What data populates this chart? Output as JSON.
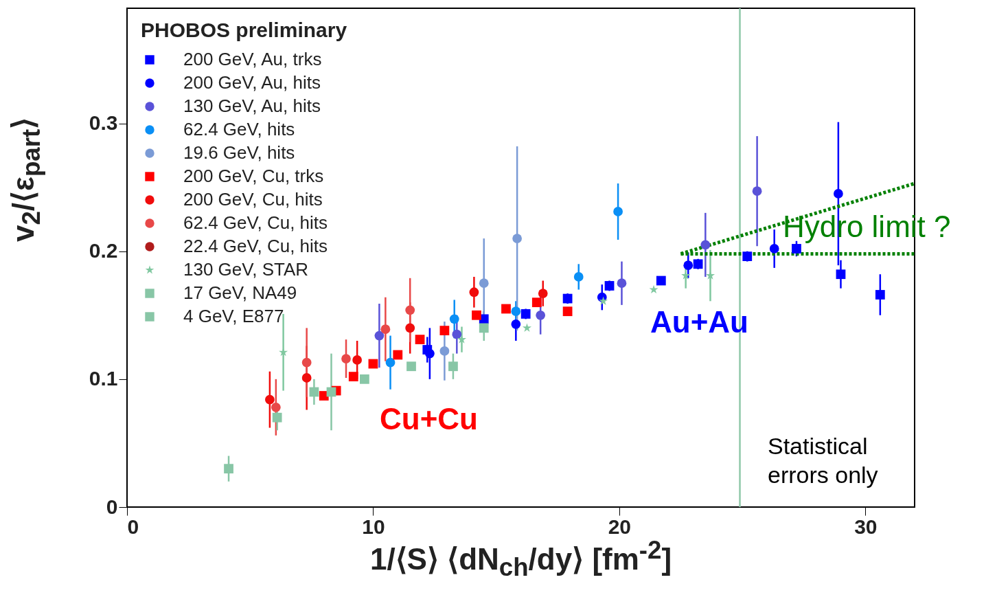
{
  "chart_data": {
    "type": "scatter",
    "xlabel": "1/⟨S⟩ ⟨dN$_{ch}$/dy⟩ [fm$^{-2}$]",
    "ylabel": "v$_{2}$/⟨ε$_{part}$⟩",
    "legend_title": "PHOBOS preliminary",
    "legend": "top left",
    "grid": false,
    "xlim": [
      0,
      32
    ],
    "ylim": [
      0,
      0.39
    ],
    "xticks": [
      0,
      10,
      20,
      30
    ],
    "yticks": [
      0,
      0.1,
      0.2,
      0.3
    ],
    "series": [
      {
        "name": "200 GeV, Au, trks",
        "color": "#0000ff",
        "marker": "square",
        "x": [
          12.2,
          14.5,
          16.2,
          17.9,
          19.6,
          21.7,
          23.2,
          25.2,
          27.2,
          29.0,
          30.6
        ],
        "values": [
          0.123,
          0.147,
          0.151,
          0.163,
          0.173,
          0.177,
          0.19,
          0.196,
          0.202,
          0.182,
          0.166
        ],
        "errors": [
          0.01,
          0.006,
          0.004,
          0.004,
          0.004,
          0.003,
          0.004,
          0.004,
          0.006,
          0.011,
          0.016
        ]
      },
      {
        "name": "200 GeV, Au, hits",
        "color": "#0000ff",
        "marker": "circle",
        "x": [
          12.3,
          15.8,
          19.3,
          22.8,
          26.3,
          28.9
        ],
        "values": [
          0.12,
          0.143,
          0.164,
          0.189,
          0.202,
          0.245
        ],
        "errors": [
          0.02,
          0.013,
          0.01,
          0.01,
          0.015,
          0.056
        ]
      },
      {
        "name": "130 GeV, Au, hits",
        "color": "#5a52d8",
        "marker": "circle",
        "x": [
          10.25,
          13.4,
          16.8,
          20.1,
          23.5,
          25.6
        ],
        "values": [
          0.134,
          0.135,
          0.15,
          0.175,
          0.205,
          0.247
        ],
        "errors": [
          0.025,
          0.015,
          0.015,
          0.017,
          0.025,
          0.043
        ]
      },
      {
        "name": "62.4 GeV, hits",
        "color": "#0a8ff5",
        "marker": "circle",
        "x": [
          10.7,
          13.3,
          15.8,
          18.35,
          19.95
        ],
        "values": [
          0.113,
          0.147,
          0.153,
          0.18,
          0.231
        ],
        "errors": [
          0.021,
          0.015,
          0.008,
          0.01,
          0.022
        ]
      },
      {
        "name": "19.6 GeV, hits",
        "color": "#7b9bd6",
        "marker": "circle",
        "x": [
          12.9,
          14.5,
          15.85
        ],
        "values": [
          0.122,
          0.175,
          0.21
        ],
        "errors": [
          0.023,
          0.035,
          0.072
        ]
      },
      {
        "name": "200 GeV, Cu, trks",
        "color": "#ff0000",
        "marker": "square",
        "x": [
          8.0,
          8.5,
          9.2,
          10.0,
          11.0,
          11.9,
          12.9,
          14.2,
          15.4,
          16.65,
          17.9
        ],
        "values": [
          0.087,
          0.091,
          0.102,
          0.112,
          0.119,
          0.131,
          0.138,
          0.15,
          0.155,
          0.16,
          0.153
        ]
      },
      {
        "name": "200 GeV, Cu, hits",
        "color": "#f00c0c",
        "marker": "circle",
        "x": [
          5.8,
          7.3,
          9.35,
          11.5,
          14.1,
          16.9
        ],
        "values": [
          0.084,
          0.101,
          0.115,
          0.14,
          0.168,
          0.167
        ],
        "errors": [
          0.022,
          0.025,
          0.015,
          0.02,
          0.012,
          0.01
        ]
      },
      {
        "name": "62.4 GeV, Cu, hits",
        "color": "#e84848",
        "marker": "circle",
        "x": [
          6.05,
          7.3,
          8.9,
          10.5,
          11.5
        ],
        "values": [
          0.078,
          0.113,
          0.116,
          0.139,
          0.154
        ],
        "errors": [
          0.022,
          0.027,
          0.015,
          0.025,
          0.025
        ]
      },
      {
        "name": "22.4 GeV, Cu, hits",
        "color": "#b01c1c",
        "marker": "circle"
      },
      {
        "name": "130 GeV, STAR",
        "color": "#80c8a0",
        "marker": "star",
        "x": [
          6.35,
          13.6,
          16.25,
          19.35,
          21.4,
          22.7,
          23.7
        ],
        "values": [
          0.121,
          0.131,
          0.14,
          0.161,
          0.17,
          0.181,
          0.181
        ],
        "errors": [
          0.03,
          0.01,
          null,
          null,
          null,
          0.01,
          0.02
        ]
      },
      {
        "name": "17 GeV, NA49",
        "color": "#88c6a6",
        "marker": "square",
        "x": [
          6.1,
          7.6,
          8.3,
          9.65,
          11.55,
          13.25,
          14.5
        ],
        "values": [
          0.07,
          0.09,
          0.09,
          0.1,
          0.11,
          0.11,
          0.14
        ],
        "errors": [
          0.01,
          0.01,
          0.03,
          null,
          null,
          0.01,
          0.01
        ]
      },
      {
        "name": "4 GeV, E877",
        "color": "#88c6a6",
        "marker": "square",
        "x": [
          4.13
        ],
        "values": [
          0.03
        ],
        "errors": [
          0.01
        ]
      },
      {
        "type": "line",
        "color": "#008000",
        "line_style": "dotted",
        "x": [
          22.5,
          32
        ],
        "values": [
          0.198,
          0.198
        ]
      },
      {
        "type": "line",
        "color": "#008000",
        "line_style": "dotted",
        "x": [
          22.5,
          32
        ],
        "values": [
          0.198,
          0.253
        ]
      }
    ],
    "ref_lines": [
      {
        "axis": "x",
        "value": 24.9,
        "color": "#90c8aa"
      }
    ],
    "annotations": [
      "Cu+Cu",
      "Au+Au",
      "Statistical errors only",
      "Hydro limit ?"
    ]
  }
}
